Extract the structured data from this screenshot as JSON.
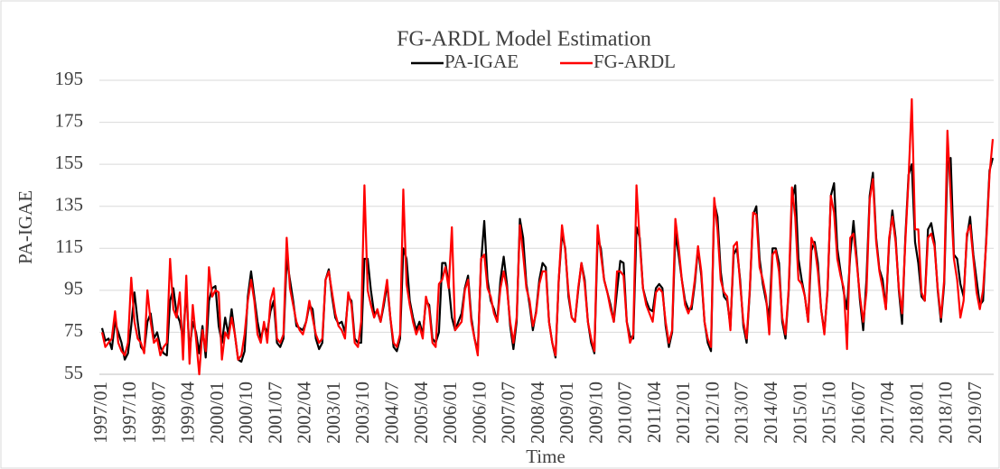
{
  "chart_data": {
    "type": "line",
    "title": "FG-ARDL Model Estimation",
    "x_label": "Time",
    "y_label": "PA-IGAE",
    "legend": "top",
    "grid": true,
    "ylim": [
      55,
      195
    ],
    "yticks": [
      55,
      75,
      95,
      115,
      135,
      155,
      175,
      195
    ],
    "categories": [
      "1997/01",
      null,
      null,
      null,
      null,
      null,
      null,
      null,
      null,
      "1997/10",
      null,
      null,
      null,
      null,
      null,
      null,
      null,
      null,
      "1998/07",
      null,
      null,
      null,
      null,
      null,
      null,
      null,
      null,
      "1999/04",
      null,
      null,
      null,
      null,
      null,
      null,
      null,
      null,
      "2000/01",
      null,
      null,
      null,
      null,
      null,
      null,
      null,
      null,
      "2000/10",
      null,
      null,
      null,
      null,
      null,
      null,
      null,
      null,
      "2001/07",
      null,
      null,
      null,
      null,
      null,
      null,
      null,
      null,
      "2002/04",
      null,
      null,
      null,
      null,
      null,
      null,
      null,
      null,
      "2003/01",
      null,
      null,
      null,
      null,
      null,
      null,
      null,
      null,
      "2003/10",
      null,
      null,
      null,
      null,
      null,
      null,
      null,
      null,
      "2004/07",
      null,
      null,
      null,
      null,
      null,
      null,
      null,
      null,
      "2005/04",
      null,
      null,
      null,
      null,
      null,
      null,
      null,
      null,
      "2006/01",
      null,
      null,
      null,
      null,
      null,
      null,
      null,
      null,
      "2006/10",
      null,
      null,
      null,
      null,
      null,
      null,
      null,
      null,
      "2007/07",
      null,
      null,
      null,
      null,
      null,
      null,
      null,
      null,
      "2008/04",
      null,
      null,
      null,
      null,
      null,
      null,
      null,
      null,
      "2009/01",
      null,
      null,
      null,
      null,
      null,
      null,
      null,
      null,
      "2009/10",
      null,
      null,
      null,
      null,
      null,
      null,
      null,
      null,
      "2010/07",
      null,
      null,
      null,
      null,
      null,
      null,
      null,
      null,
      "2011/04",
      null,
      null,
      null,
      null,
      null,
      null,
      null,
      null,
      "2012/01",
      null,
      null,
      null,
      null,
      null,
      null,
      null,
      null,
      "2012/10",
      null,
      null,
      null,
      null,
      null,
      null,
      null,
      null,
      "2013/07",
      null,
      null,
      null,
      null,
      null,
      null,
      null,
      null,
      "2014/04",
      null,
      null,
      null,
      null,
      null,
      null,
      null,
      null,
      "2015/01",
      null,
      null,
      null,
      null,
      null,
      null,
      null,
      null,
      "2015/10",
      null,
      null,
      null,
      null,
      null,
      null,
      null,
      null,
      "2016/07",
      null,
      null,
      null,
      null,
      null,
      null,
      null,
      null,
      "2017/04",
      null,
      null,
      null,
      null,
      null,
      null,
      null,
      null,
      "2018/01",
      null,
      null,
      null,
      null,
      null,
      null,
      null,
      null,
      "2018/10",
      null,
      null,
      null,
      null,
      null,
      null,
      null,
      null,
      "2019/07",
      null,
      null,
      null,
      null,
      null
    ],
    "series": [
      {
        "name": "PA-IGAE",
        "color": "#000000",
        "values": [
          77,
          71,
          72,
          67,
          80,
          75,
          70,
          62,
          65,
          78,
          94,
          80,
          68,
          66,
          80,
          84,
          72,
          75,
          68,
          65,
          64,
          90,
          96,
          84,
          80,
          72,
          95,
          66,
          80,
          75,
          65,
          78,
          63,
          90,
          96,
          97,
          78,
          70,
          82,
          74,
          86,
          74,
          62,
          61,
          66,
          92,
          104,
          92,
          80,
          72,
          78,
          75,
          85,
          90,
          70,
          68,
          72,
          110,
          100,
          90,
          78,
          77,
          76,
          80,
          88,
          86,
          72,
          67,
          70,
          100,
          105,
          92,
          82,
          79,
          80,
          75,
          92,
          90,
          72,
          70,
          70,
          110,
          110,
          95,
          84,
          85,
          80,
          88,
          98,
          82,
          68,
          66,
          72,
          115,
          110,
          90,
          82,
          76,
          80,
          74,
          90,
          88,
          72,
          70,
          75,
          108,
          108,
          98,
          82,
          76,
          80,
          84,
          96,
          102,
          82,
          72,
          66,
          108,
          128,
          100,
          90,
          86,
          80,
          100,
          111,
          98,
          78,
          67,
          80,
          129,
          120,
          98,
          88,
          76,
          85,
          100,
          108,
          106,
          80,
          70,
          63,
          100,
          122,
          115,
          92,
          82,
          80,
          95,
          108,
          100,
          80,
          70,
          65,
          120,
          115,
          100,
          94,
          88,
          80,
          95,
          109,
          108,
          80,
          73,
          72,
          125,
          120,
          96,
          90,
          86,
          85,
          96,
          98,
          96,
          78,
          68,
          75,
          122,
          112,
          100,
          90,
          86,
          86,
          98,
          115,
          102,
          80,
          70,
          66,
          137,
          130,
          104,
          92,
          90,
          78,
          112,
          115,
          100,
          78,
          70,
          95,
          131,
          135,
          110,
          98,
          90,
          82,
          115,
          115,
          108,
          80,
          72,
          95,
          138,
          145,
          110,
          100,
          92,
          80,
          114,
          118,
          108,
          86,
          75,
          95,
          140,
          146,
          115,
          104,
          94,
          86,
          112,
          128,
          110,
          90,
          76,
          100,
          140,
          151,
          120,
          105,
          100,
          86,
          118,
          133,
          120,
          95,
          79,
          120,
          150,
          155,
          118,
          108,
          92,
          90,
          124,
          127,
          118,
          95,
          80,
          98,
          156,
          158,
          112,
          110,
          98,
          92,
          120,
          130,
          112,
          100,
          88,
          90,
          120,
          152,
          158
        ]
      },
      {
        "name": "FG-ARDL",
        "color": "#ff0000",
        "values": [
          75,
          68,
          70,
          72,
          85,
          70,
          66,
          64,
          70,
          101,
          80,
          72,
          70,
          65,
          95,
          80,
          70,
          72,
          64,
          68,
          70,
          110,
          86,
          82,
          94,
          62,
          102,
          60,
          88,
          72,
          55,
          76,
          66,
          106,
          92,
          95,
          94,
          62,
          75,
          72,
          82,
          74,
          62,
          64,
          74,
          90,
          100,
          90,
          74,
          70,
          80,
          70,
          90,
          96,
          72,
          70,
          74,
          120,
          96,
          88,
          80,
          76,
          74,
          80,
          90,
          82,
          74,
          70,
          72,
          100,
          104,
          94,
          84,
          78,
          76,
          72,
          94,
          88,
          70,
          68,
          80,
          145,
          95,
          88,
          82,
          86,
          80,
          90,
          100,
          82,
          70,
          68,
          74,
          143,
          98,
          88,
          80,
          74,
          78,
          72,
          92,
          86,
          70,
          68,
          98,
          100,
          106,
          96,
          125,
          76,
          78,
          80,
          95,
          100,
          80,
          72,
          64,
          110,
          112,
          96,
          92,
          84,
          80,
          96,
          104,
          96,
          80,
          70,
          82,
          126,
          112,
          96,
          90,
          78,
          84,
          98,
          104,
          104,
          80,
          70,
          64,
          100,
          126,
          114,
          94,
          82,
          80,
          96,
          108,
          98,
          80,
          72,
          66,
          126,
          112,
          100,
          94,
          86,
          80,
          104,
          104,
          102,
          80,
          70,
          74,
          145,
          118,
          96,
          88,
          84,
          80,
          94,
          96,
          94,
          80,
          70,
          76,
          129,
          116,
          100,
          88,
          84,
          88,
          100,
          116,
          104,
          80,
          72,
          68,
          139,
          124,
          100,
          94,
          92,
          76,
          116,
          118,
          98,
          80,
          72,
          96,
          132,
          131,
          106,
          100,
          92,
          74,
          112,
          114,
          104,
          82,
          74,
          96,
          144,
          130,
          100,
          98,
          92,
          80,
          120,
          116,
          104,
          86,
          74,
          96,
          140,
          132,
          110,
          102,
          96,
          67,
          120,
          122,
          108,
          92,
          80,
          94,
          138,
          148,
          118,
          104,
          96,
          86,
          120,
          130,
          118,
          96,
          84,
          118,
          148,
          186,
          124,
          124,
          94,
          90,
          120,
          122,
          116,
          96,
          82,
          100,
          171,
          140,
          110,
          100,
          82,
          90,
          122,
          126,
          110,
          94,
          86,
          95,
          118,
          150,
          167
        ]
      }
    ]
  }
}
